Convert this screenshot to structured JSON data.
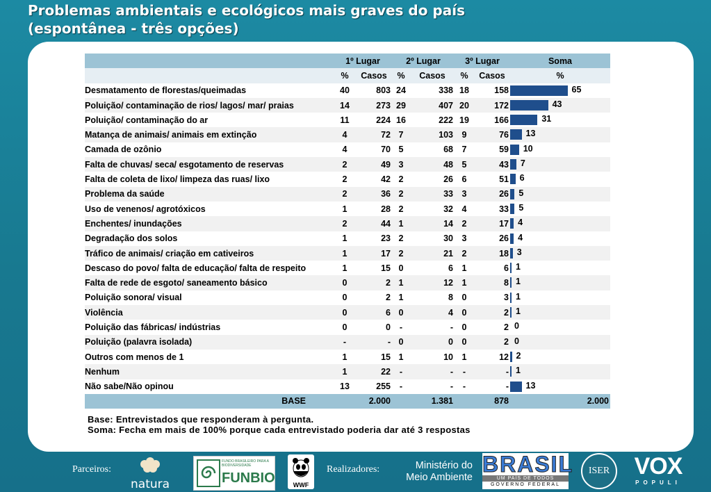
{
  "title_line1": "Problemas ambientais e ecológicos mais graves do país",
  "title_line2": "(espontânea - três opções)",
  "headers": {
    "primeiro": "1º Lugar",
    "segundo": "2º Lugar",
    "terceiro": "3º Lugar",
    "soma": "Soma"
  },
  "subheaders": {
    "pct": "%",
    "casos": "Casos"
  },
  "rows": [
    {
      "label": "Desmatamento de florestas/queimadas",
      "p1": "40",
      "c1": "803",
      "p2": "24",
      "c2": "338",
      "p3": "18",
      "c3": "158",
      "soma": 65
    },
    {
      "label": "Poluição/ contaminação de rios/ lagos/ mar/ praias",
      "p1": "14",
      "c1": "273",
      "p2": "29",
      "c2": "407",
      "p3": "20",
      "c3": "172",
      "soma": 43
    },
    {
      "label": "Poluição/ contaminação do ar",
      "p1": "11",
      "c1": "224",
      "p2": "16",
      "c2": "222",
      "p3": "19",
      "c3": "166",
      "soma": 31
    },
    {
      "label": "Matança de animais/ animais em extinção",
      "p1": "4",
      "c1": "72",
      "p2": "7",
      "c2": "103",
      "p3": "9",
      "c3": "76",
      "soma": 13
    },
    {
      "label": "Camada de ozônio",
      "p1": "4",
      "c1": "70",
      "p2": "5",
      "c2": "68",
      "p3": "7",
      "c3": "59",
      "soma": 10
    },
    {
      "label": "Falta de chuvas/ seca/ esgotamento de reservas",
      "p1": "2",
      "c1": "49",
      "p2": "3",
      "c2": "48",
      "p3": "5",
      "c3": "43",
      "soma": 7
    },
    {
      "label": "Falta de coleta de lixo/ limpeza das ruas/ lixo",
      "p1": "2",
      "c1": "42",
      "p2": "2",
      "c2": "26",
      "p3": "6",
      "c3": "51",
      "soma": 6
    },
    {
      "label": "Problema da saúde",
      "p1": "2",
      "c1": "36",
      "p2": "2",
      "c2": "33",
      "p3": "3",
      "c3": "26",
      "soma": 5
    },
    {
      "label": "Uso de venenos/ agrotóxicos",
      "p1": "1",
      "c1": "28",
      "p2": "2",
      "c2": "32",
      "p3": "4",
      "c3": "33",
      "soma": 5
    },
    {
      "label": "Enchentes/ inundações",
      "p1": "2",
      "c1": "44",
      "p2": "1",
      "c2": "14",
      "p3": "2",
      "c3": "17",
      "soma": 4
    },
    {
      "label": "Degradação dos solos",
      "p1": "1",
      "c1": "23",
      "p2": "2",
      "c2": "30",
      "p3": "3",
      "c3": "26",
      "soma": 4
    },
    {
      "label": "Tráfico de animais/ criação em cativeiros",
      "p1": "1",
      "c1": "17",
      "p2": "2",
      "c2": "21",
      "p3": "2",
      "c3": "18",
      "soma": 3
    },
    {
      "label": "Descaso do povo/ falta de educação/ falta de respeito",
      "p1": "1",
      "c1": "15",
      "p2": "0",
      "c2": "6",
      "p3": "1",
      "c3": "6",
      "soma": 1
    },
    {
      "label": "Falta de rede de esgoto/ saneamento básico",
      "p1": "0",
      "c1": "2",
      "p2": "1",
      "c2": "12",
      "p3": "1",
      "c3": "8",
      "soma": 1
    },
    {
      "label": "Poluição sonora/ visual",
      "p1": "0",
      "c1": "2",
      "p2": "1",
      "c2": "8",
      "p3": "0",
      "c3": "3",
      "soma": 1
    },
    {
      "label": "Violência",
      "p1": "0",
      "c1": "6",
      "p2": "0",
      "c2": "4",
      "p3": "0",
      "c3": "2",
      "soma": 1
    },
    {
      "label": "Poluição das fábricas/ indústrias",
      "p1": "0",
      "c1": "0",
      "p2": "-",
      "c2": "-",
      "p3": "0",
      "c3": "2",
      "soma": 0
    },
    {
      "label": "Poluição (palavra isolada)",
      "p1": "-",
      "c1": "-",
      "p2": "0",
      "c2": "0",
      "p3": "0",
      "c3": "2",
      "soma": 0
    },
    {
      "label": "Outros com menos de 1",
      "p1": "1",
      "c1": "15",
      "p2": "1",
      "c2": "10",
      "p3": "1",
      "c3": "12",
      "soma": 2
    },
    {
      "label": "Nenhum",
      "p1": "1",
      "c1": "22",
      "p2": "-",
      "c2": "-",
      "p3": "-",
      "c3": "-",
      "soma": 1
    },
    {
      "label": "Não sabe/Não opinou",
      "p1": "13",
      "c1": "255",
      "p2": "-",
      "c2": "-",
      "p3": "-",
      "c3": "-",
      "soma": 13
    }
  ],
  "base": {
    "label": "BASE",
    "c1": "2.000",
    "c2": "1.381",
    "c3": "878",
    "soma": "2.000"
  },
  "notes": {
    "line1": "Base: Entrevistados que responderam à pergunta.",
    "line2": "Soma: Fecha em mais de 100% porque cada entrevistado poderia dar até 3 respostas"
  },
  "footer": {
    "parceiros": "Parceiros:",
    "realizadores": "Realizadores:",
    "natura": "natura",
    "funbio_small": "FUNDO BRASILEIRO PARA A BIODIVERSIDADE",
    "funbio": "FUNBIO",
    "wwf": "WWF",
    "ministerio_line1": "Ministério do",
    "ministerio_line2": "Meio Ambiente",
    "brasil": "BRASIL",
    "brasil_sub": "UM PAÍS DE TODOS",
    "governo": "GOVERNO FEDERAL",
    "iser": "ISER",
    "vox": "VOX",
    "populi": "POPULI"
  },
  "colors": {
    "bar": "#1f4e8c",
    "header": "#9cc3d5",
    "background": "#1a7c95"
  }
}
